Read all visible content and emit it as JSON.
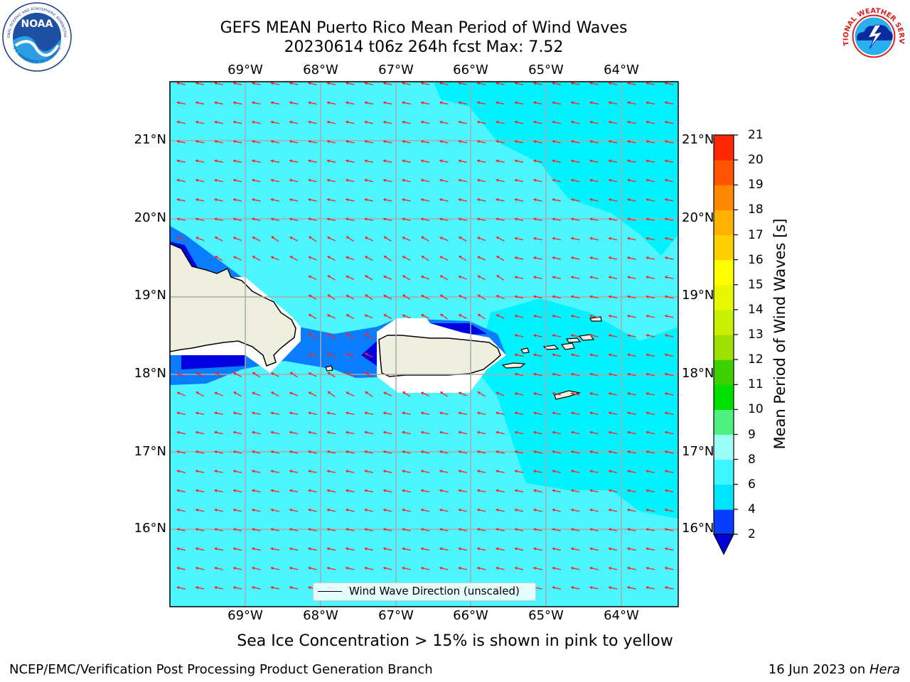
{
  "title_line1": "GEFS MEAN Puerto Rico Mean Period of Wind Waves",
  "title_line2": "20230614 t06z 264h fcst   Max: 7.52",
  "lon_labels": [
    "69°W",
    "68°W",
    "67°W",
    "66°W",
    "65°W",
    "64°W"
  ],
  "lat_labels": [
    "21°N",
    "20°N",
    "19°N",
    "18°N",
    "17°N",
    "16°N"
  ],
  "legend_label": "Wind Wave Direction (unscaled)",
  "colorbar": {
    "title": "Mean Period of Wind Waves [s]",
    "ticks": [
      "2",
      "4",
      "6",
      "8",
      "9",
      "10",
      "11",
      "12",
      "13",
      "14",
      "15",
      "16",
      "17",
      "18",
      "19",
      "20",
      "21"
    ],
    "colors": [
      "#0a3cff",
      "#00e5ff",
      "#3cf5ff",
      "#9bfff8",
      "#50f080",
      "#00e000",
      "#40d000",
      "#a0e000",
      "#c8f000",
      "#e8f800",
      "#ffff00",
      "#ffd000",
      "#ffb000",
      "#ff8800",
      "#ff5500",
      "#ff2800",
      "#ff0000"
    ],
    "extend_color": "#0000e0"
  },
  "note": "Sea Ice Concentration > 15% is shown in pink to yellow",
  "footer_left": "NCEP/EMC/Verification Post Processing Product Generation Branch",
  "footer_right_prefix": "16 Jun 2023 on ",
  "footer_right_machine": "Hera",
  "logos": {
    "left": "noaa-logo",
    "left_text": "NOAA",
    "left_ring_top": "NATIONAL OCEANIC AND ATMOSPHERIC ADMINISTRATION",
    "left_ring_bottom": "U.S. DEPARTMENT OF COMMERCE",
    "right": "nws-logo",
    "right_ring": "NATIONAL WEATHER SERVICE"
  }
}
